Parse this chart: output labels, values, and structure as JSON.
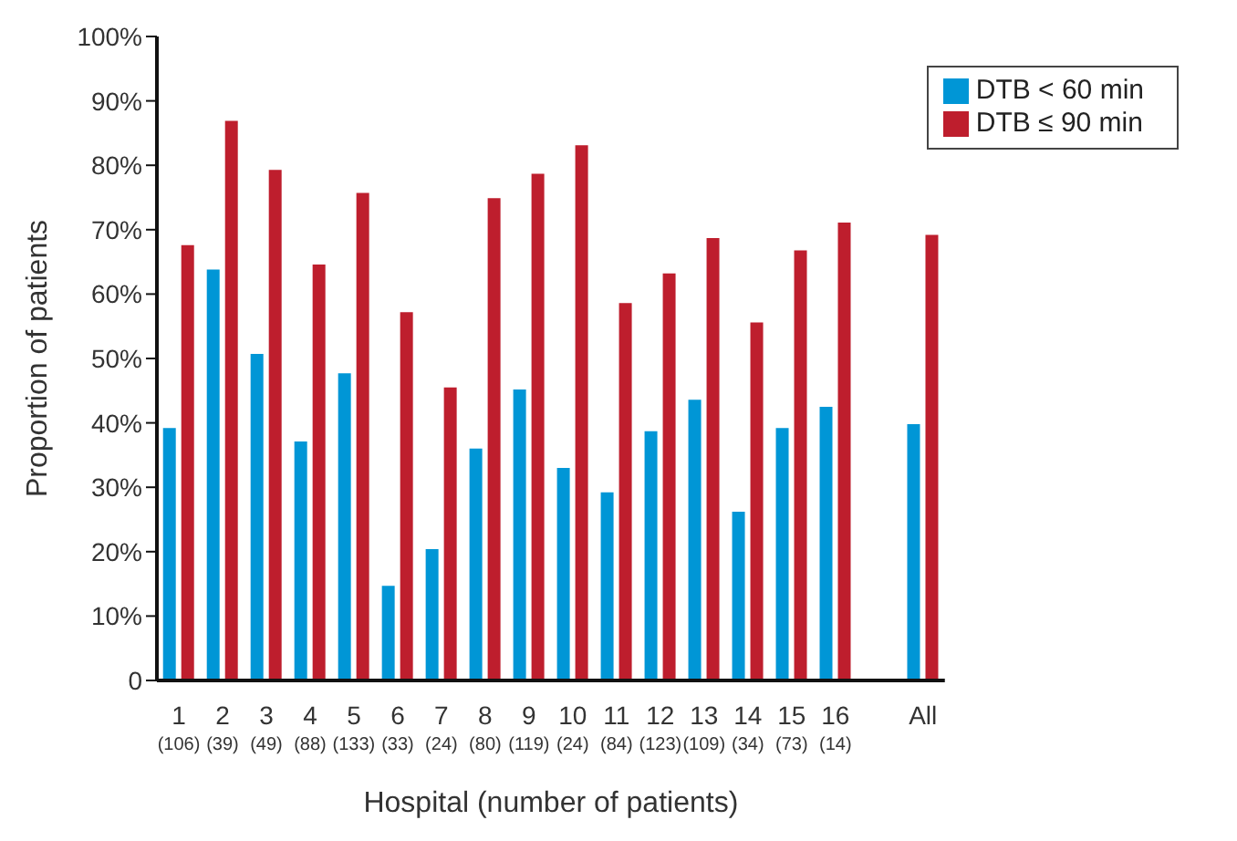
{
  "chart_data": {
    "type": "bar",
    "xlabel": "Hospital (number of patients)",
    "ylabel": "Proportion of patients",
    "categories": [
      "1\n(106)",
      "2\n(39)",
      "3\n(49)",
      "4\n(88)",
      "5\n(133)",
      "6\n(33)",
      "7\n(24)",
      "8\n(80)",
      "9\n(119)",
      "10\n(24)",
      "11\n(84)",
      "12\n(123)",
      "13\n(109)",
      "14\n(34)",
      "15\n(73)",
      "16\n(14)",
      null,
      "All"
    ],
    "series": [
      {
        "name": "DTB < 60 min",
        "color": "#0096d6",
        "values": [
          39.2,
          63.8,
          50.7,
          37.1,
          47.7,
          14.7,
          20.4,
          36,
          45.2,
          33,
          29.2,
          38.7,
          43.6,
          26.2,
          39.2,
          42.5,
          null,
          39.8
        ]
      },
      {
        "name": "DTB ≤ 90 min",
        "color": "#be1e2d",
        "values": [
          67.6,
          86.9,
          79.3,
          64.6,
          75.7,
          57.2,
          45.5,
          74.9,
          78.7,
          83.1,
          58.6,
          63.2,
          68.7,
          55.6,
          66.8,
          71.1,
          null,
          69.2
        ]
      }
    ],
    "ylim": [
      0,
      100
    ],
    "yticks": [
      0,
      {
        "value": 10,
        "label": "10%"
      },
      {
        "value": 20,
        "label": "20%"
      },
      {
        "value": 30,
        "label": "30%"
      },
      {
        "value": 40,
        "label": "40%"
      },
      {
        "value": 50,
        "label": "50%"
      },
      {
        "value": 60,
        "label": "60%"
      },
      {
        "value": 70,
        "label": "70%"
      },
      {
        "value": 80,
        "label": "80%"
      },
      {
        "value": 90,
        "label": "90%"
      },
      {
        "value": 100,
        "label": "100%"
      }
    ],
    "grid": false,
    "legend": "top right"
  }
}
